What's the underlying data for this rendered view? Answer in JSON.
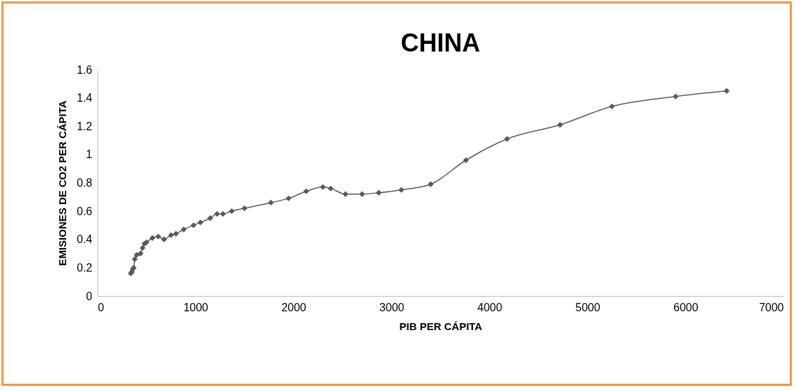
{
  "chart_data": {
    "type": "line",
    "title": "CHINA",
    "xlabel": "PIB PER CÁPITA",
    "ylabel": "EMISIONES DE CO2 PER CÁPITA",
    "xlim": [
      0,
      7000
    ],
    "xticks": [
      0,
      1000,
      2000,
      3000,
      4000,
      5000,
      6000,
      7000
    ],
    "ylim": [
      0,
      1.6
    ],
    "yticks": [
      0,
      0.2,
      0.4,
      0.6,
      0.8,
      1,
      1.2,
      1.4,
      1.6
    ],
    "grid": false,
    "marker": "diamond",
    "line_style": "solid",
    "series": [
      {
        "color": "#595959",
        "x": [
          340,
          350,
          360,
          370,
          380,
          400,
          440,
          460,
          480,
          500,
          560,
          620,
          680,
          750,
          800,
          880,
          980,
          1050,
          1150,
          1220,
          1280,
          1370,
          1500,
          1770,
          1950,
          2130,
          2300,
          2380,
          2530,
          2700,
          2870,
          3100,
          3400,
          3760,
          4180,
          4720,
          5250,
          5900,
          6420
        ],
        "values": [
          0.16,
          0.17,
          0.19,
          0.2,
          0.26,
          0.29,
          0.3,
          0.34,
          0.37,
          0.38,
          0.41,
          0.42,
          0.4,
          0.43,
          0.44,
          0.47,
          0.5,
          0.52,
          0.55,
          0.58,
          0.58,
          0.6,
          0.62,
          0.66,
          0.69,
          0.74,
          0.77,
          0.76,
          0.72,
          0.72,
          0.73,
          0.75,
          0.79,
          0.96,
          1.11,
          1.21,
          1.34,
          1.41,
          1.45
        ]
      }
    ]
  }
}
